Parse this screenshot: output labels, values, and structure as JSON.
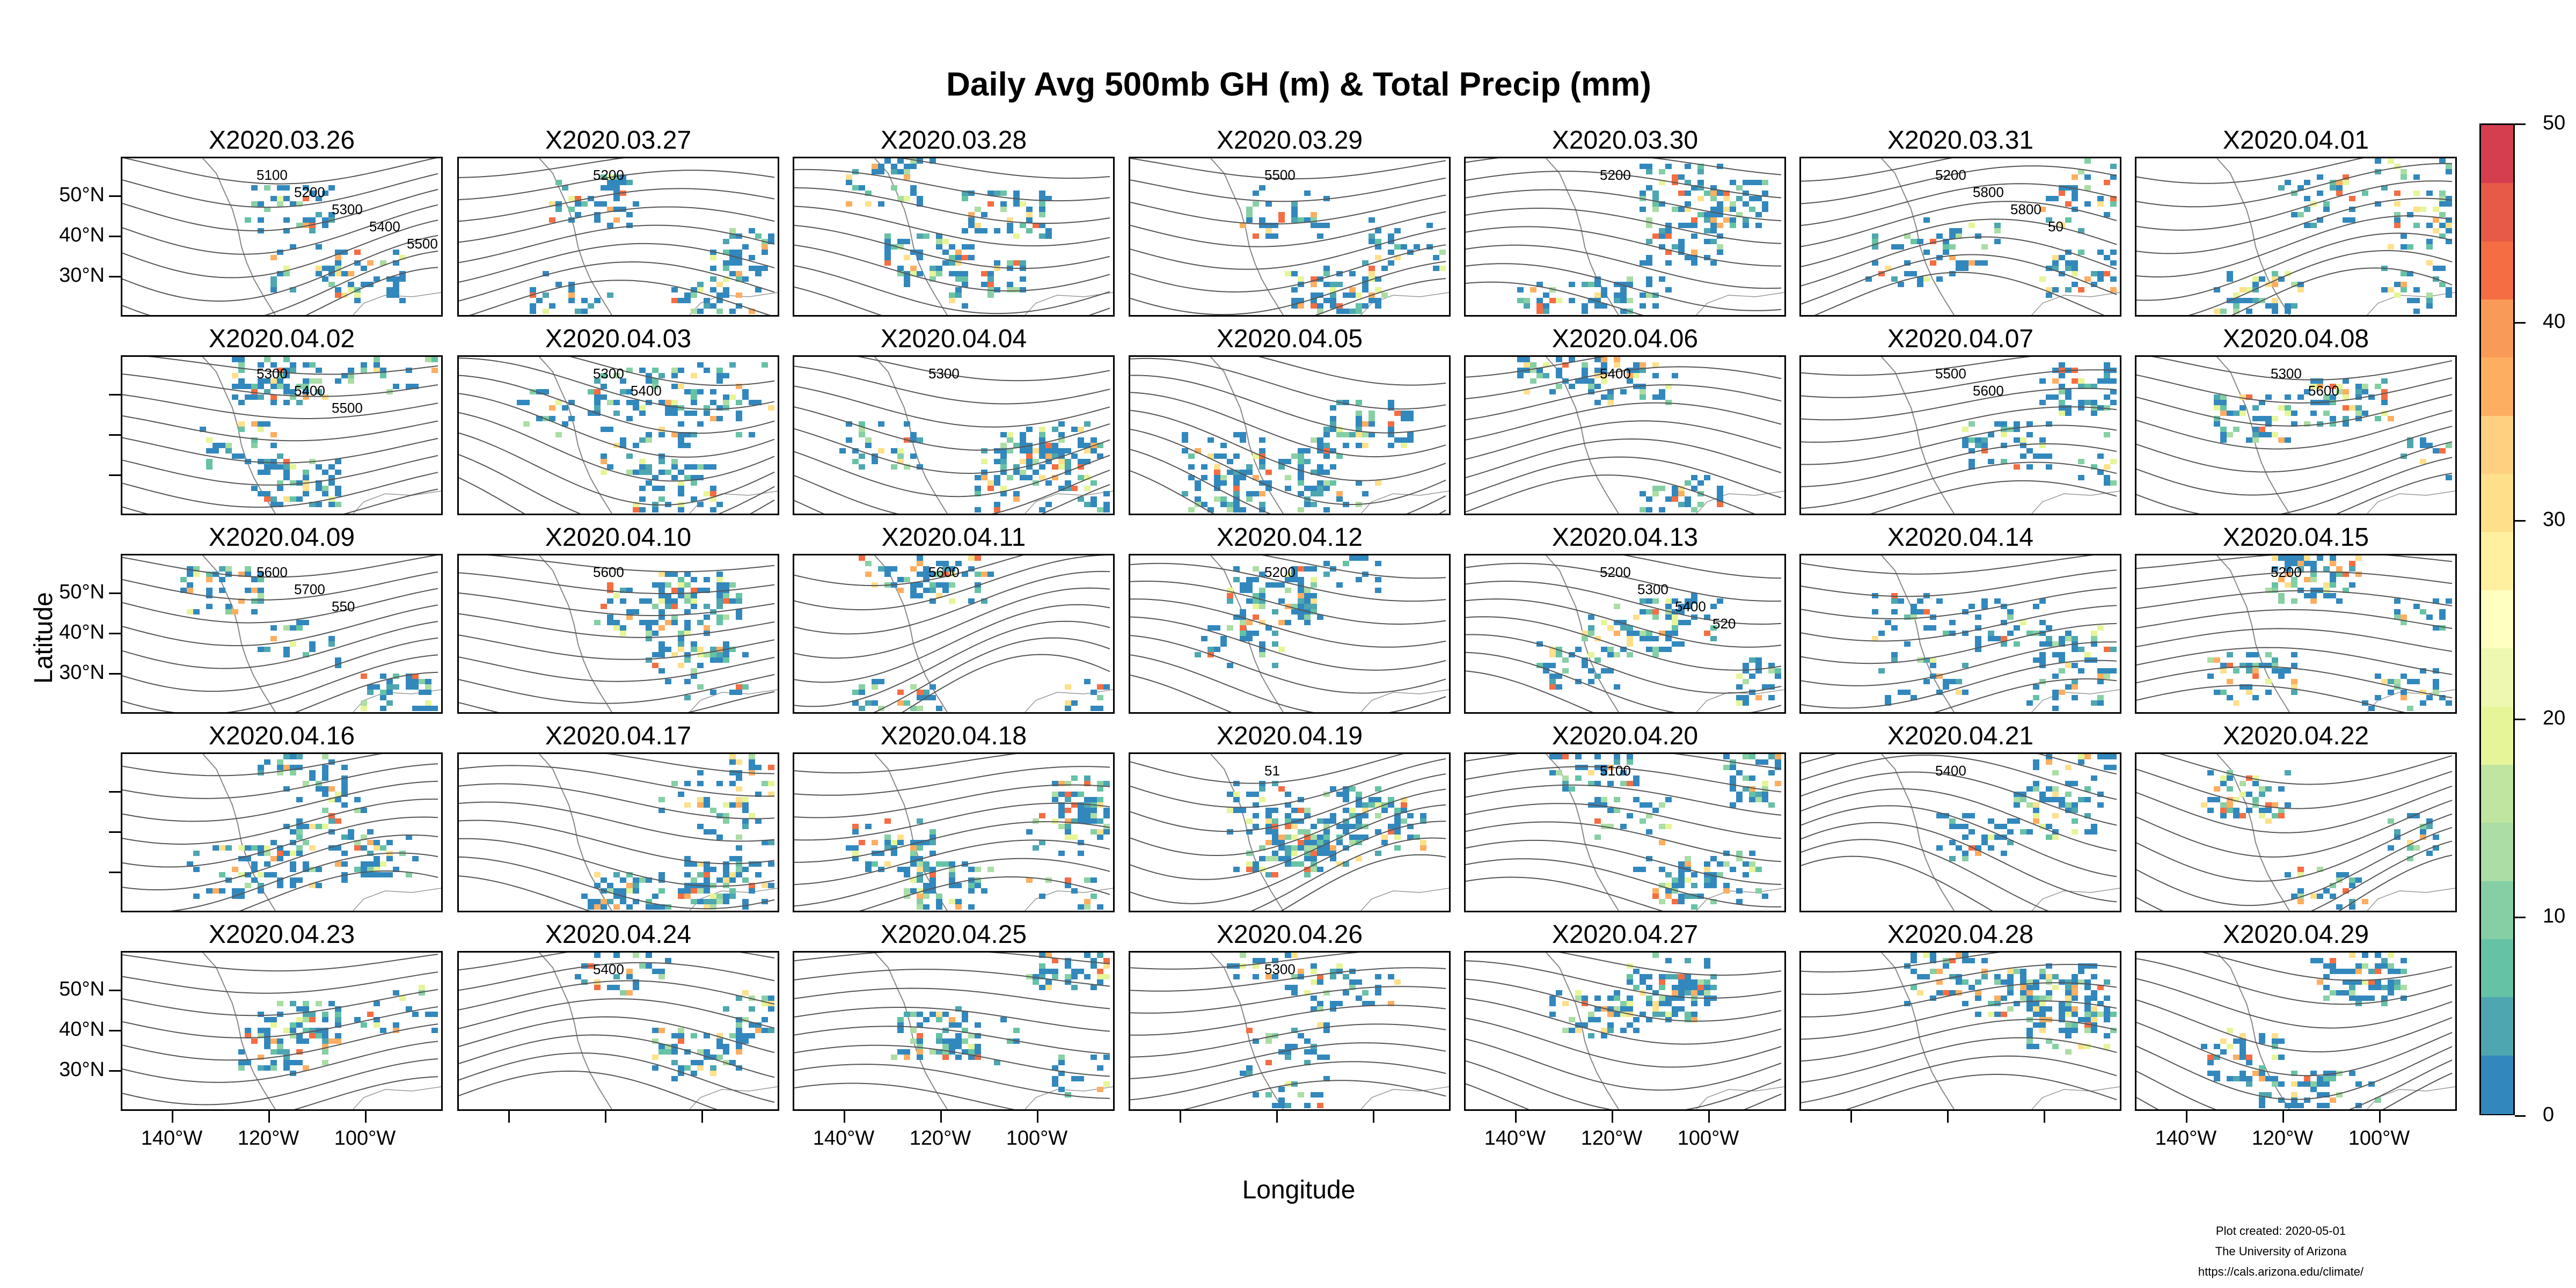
{
  "title": "Daily Avg 500mb GH (m) & Total Precip (mm)",
  "xlabel": "Longitude",
  "ylabel": "Latitude",
  "lat_tick_labels": [
    "50°N",
    "40°N",
    "30°N"
  ],
  "lon_tick_labels": [
    "140°W",
    "120°W",
    "100°W"
  ],
  "panels": [
    {
      "date": "X2020.03.26",
      "contours": [
        "5100",
        "5200",
        "5300",
        "5400",
        "5500"
      ]
    },
    {
      "date": "X2020.03.27",
      "contours": [
        "5200"
      ]
    },
    {
      "date": "X2020.03.28",
      "contours": []
    },
    {
      "date": "X2020.03.29",
      "contours": [
        "5500"
      ]
    },
    {
      "date": "X2020.03.30",
      "contours": [
        "5200"
      ]
    },
    {
      "date": "X2020.03.31",
      "contours": [
        "5200",
        "5800",
        "5800",
        "50"
      ]
    },
    {
      "date": "X2020.04.01",
      "contours": []
    },
    {
      "date": "X2020.04.02",
      "contours": [
        "5300",
        "5400",
        "5500"
      ]
    },
    {
      "date": "X2020.04.03",
      "contours": [
        "5300",
        "5400"
      ]
    },
    {
      "date": "X2020.04.04",
      "contours": [
        "5300"
      ]
    },
    {
      "date": "X2020.04.05",
      "contours": []
    },
    {
      "date": "X2020.04.06",
      "contours": [
        "5400"
      ]
    },
    {
      "date": "X2020.04.07",
      "contours": [
        "5500",
        "5600"
      ]
    },
    {
      "date": "X2020.04.08",
      "contours": [
        "5300",
        "5600"
      ]
    },
    {
      "date": "X2020.04.09",
      "contours": [
        "5600",
        "5700",
        "550"
      ]
    },
    {
      "date": "X2020.04.10",
      "contours": [
        "5600"
      ]
    },
    {
      "date": "X2020.04.11",
      "contours": [
        "5600"
      ]
    },
    {
      "date": "X2020.04.12",
      "contours": [
        "5200"
      ]
    },
    {
      "date": "X2020.04.13",
      "contours": [
        "5200",
        "5300",
        "5400",
        "520"
      ]
    },
    {
      "date": "X2020.04.14",
      "contours": []
    },
    {
      "date": "X2020.04.15",
      "contours": [
        "5200"
      ]
    },
    {
      "date": "X2020.04.16",
      "contours": []
    },
    {
      "date": "X2020.04.17",
      "contours": []
    },
    {
      "date": "X2020.04.18",
      "contours": []
    },
    {
      "date": "X2020.04.19",
      "contours": [
        "51"
      ]
    },
    {
      "date": "X2020.04.20",
      "contours": [
        "5100"
      ]
    },
    {
      "date": "X2020.04.21",
      "contours": [
        "5400"
      ]
    },
    {
      "date": "X2020.04.22",
      "contours": []
    },
    {
      "date": "X2020.04.23",
      "contours": []
    },
    {
      "date": "X2020.04.24",
      "contours": [
        "5400"
      ]
    },
    {
      "date": "X2020.04.25",
      "contours": []
    },
    {
      "date": "X2020.04.26",
      "contours": [
        "5300"
      ]
    },
    {
      "date": "X2020.04.27",
      "contours": []
    },
    {
      "date": "X2020.04.28",
      "contours": []
    },
    {
      "date": "X2020.04.29",
      "contours": []
    }
  ],
  "colorbar": {
    "ticks": [
      "50",
      "40",
      "30",
      "20",
      "10",
      "0"
    ],
    "colors": [
      "#d53e4f",
      "#e65a47",
      "#f46d43",
      "#f99b56",
      "#fdae61",
      "#fed080",
      "#fee08b",
      "#fff0a0",
      "#ffffbf",
      "#eef8b0",
      "#e6f598",
      "#bfe5a0",
      "#abdda4",
      "#86cfa5",
      "#66c2a5",
      "#4da6b0",
      "#3288bd"
    ]
  },
  "footer": {
    "created": "Plot created: 2020-05-01",
    "org": "The University of Arizona",
    "url": "https://cals.arizona.edu/climate/"
  }
}
